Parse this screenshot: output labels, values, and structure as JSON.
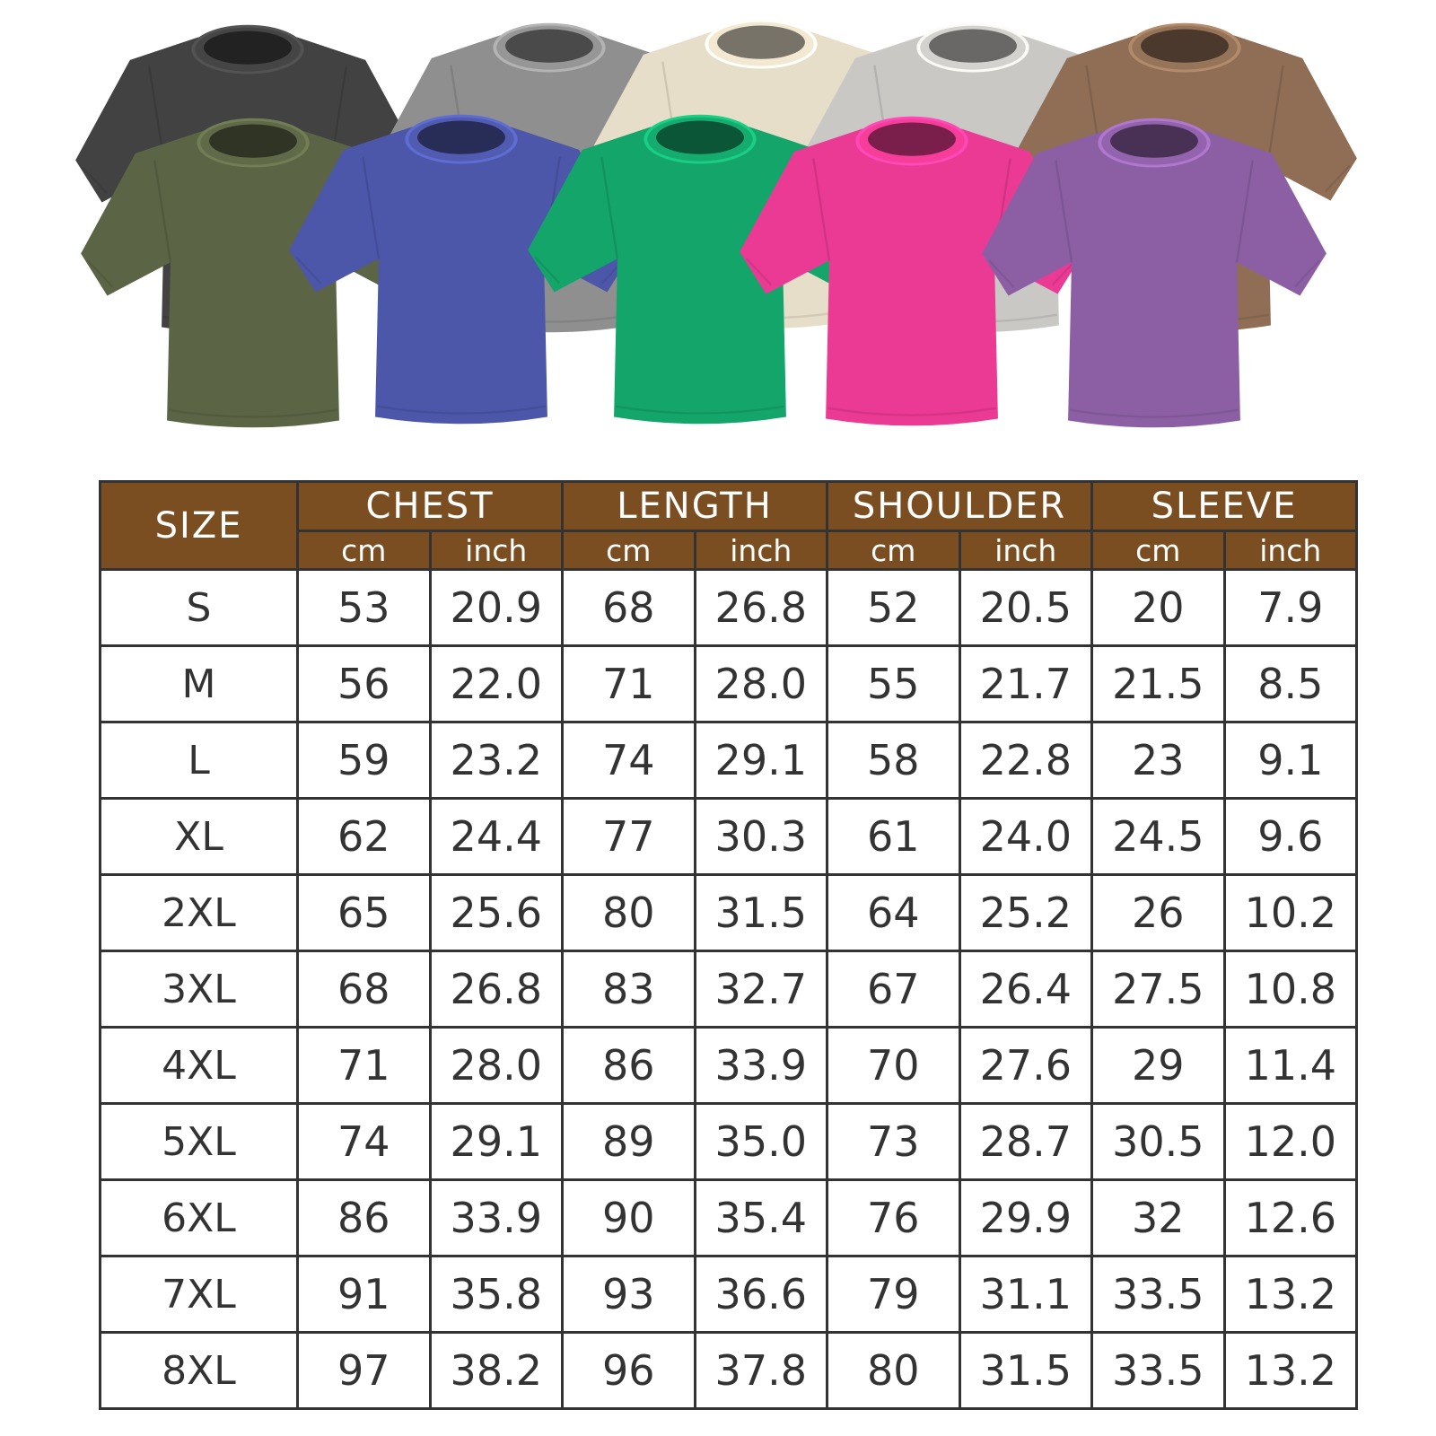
{
  "shirts": {
    "back_row": [
      {
        "name": "washed-black",
        "color": "#424242"
      },
      {
        "name": "washed-grey",
        "color": "#8f8f8f"
      },
      {
        "name": "washed-cream",
        "color": "#e7dec9"
      },
      {
        "name": "washed-light-grey",
        "color": "#c9c8c5"
      },
      {
        "name": "washed-brown",
        "color": "#8f6e55"
      }
    ],
    "front_row": [
      {
        "name": "washed-army-green",
        "color": "#5b6445"
      },
      {
        "name": "washed-blue",
        "color": "#4c57a9"
      },
      {
        "name": "washed-green",
        "color": "#14a56a"
      },
      {
        "name": "washed-rose",
        "color": "#ea3a93"
      },
      {
        "name": "washed-purple",
        "color": "#8c5fa5"
      }
    ]
  },
  "size_table": {
    "header": {
      "size_label": "SIZE",
      "groups": [
        {
          "label": "CHEST"
        },
        {
          "label": "LENGTH"
        },
        {
          "label": "SHOULDER"
        },
        {
          "label": "SLEEVE"
        }
      ],
      "unit_cm": "cm",
      "unit_inch": "inch"
    },
    "colors": {
      "header_bg": "#7a4e21",
      "header_text": "#ffffff",
      "cell_text": "#333333",
      "border": "#333333"
    },
    "rows": [
      {
        "size": "S",
        "values": [
          "53",
          "20.9",
          "68",
          "26.8",
          "52",
          "20.5",
          "20",
          "7.9"
        ]
      },
      {
        "size": "M",
        "values": [
          "56",
          "22.0",
          "71",
          "28.0",
          "55",
          "21.7",
          "21.5",
          "8.5"
        ]
      },
      {
        "size": "L",
        "values": [
          "59",
          "23.2",
          "74",
          "29.1",
          "58",
          "22.8",
          "23",
          "9.1"
        ]
      },
      {
        "size": "XL",
        "values": [
          "62",
          "24.4",
          "77",
          "30.3",
          "61",
          "24.0",
          "24.5",
          "9.6"
        ]
      },
      {
        "size": "2XL",
        "values": [
          "65",
          "25.6",
          "80",
          "31.5",
          "64",
          "25.2",
          "26",
          "10.2"
        ]
      },
      {
        "size": "3XL",
        "values": [
          "68",
          "26.8",
          "83",
          "32.7",
          "67",
          "26.4",
          "27.5",
          "10.8"
        ]
      },
      {
        "size": "4XL",
        "values": [
          "71",
          "28.0",
          "86",
          "33.9",
          "70",
          "27.6",
          "29",
          "11.4"
        ]
      },
      {
        "size": "5XL",
        "values": [
          "74",
          "29.1",
          "89",
          "35.0",
          "73",
          "28.7",
          "30.5",
          "12.0"
        ]
      },
      {
        "size": "6XL",
        "values": [
          "86",
          "33.9",
          "90",
          "35.4",
          "76",
          "29.9",
          "32",
          "12.6"
        ]
      },
      {
        "size": "7XL",
        "values": [
          "91",
          "35.8",
          "93",
          "36.6",
          "79",
          "31.1",
          "33.5",
          "13.2"
        ]
      },
      {
        "size": "8XL",
        "values": [
          "97",
          "38.2",
          "96",
          "37.8",
          "80",
          "31.5",
          "33.5",
          "13.2"
        ]
      }
    ]
  }
}
